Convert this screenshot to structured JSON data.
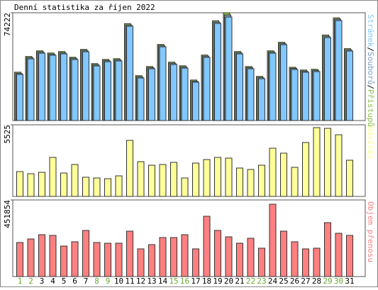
{
  "chart_data": [
    {
      "type": "bar",
      "title": "Denní statistika za říjen 2022",
      "ylim": [
        0,
        74222
      ],
      "yticks": [
        74222
      ],
      "legend_separator": "/",
      "series": [
        {
          "name": "Stránek",
          "color": "#80c8ff",
          "values": [
            31740,
            42480,
            46390,
            44920,
            45900,
            41990,
            47360,
            37600,
            40530,
            41020,
            64940,
            29300,
            35650,
            50780,
            38580,
            36130,
            26370,
            43460,
            66900,
            71290,
            45900,
            35650,
            28810,
            46390,
            52250,
            35160,
            33200,
            33690,
            57130,
            68850,
            47850
          ]
        },
        {
          "name": "Souborů",
          "color": "#7a9cc0",
          "values": [
            32500,
            43300,
            47200,
            45700,
            46700,
            42800,
            48200,
            38400,
            41300,
            41800,
            65800,
            30100,
            36400,
            51600,
            39400,
            36900,
            27100,
            44300,
            67800,
            72700,
            46700,
            36400,
            29600,
            47200,
            53100,
            35900,
            34000,
            34500,
            58000,
            69800,
            48700
          ]
        },
        {
          "name": "Přístupů",
          "color": "#8abf45",
          "values": [
            33300,
            44100,
            48000,
            46500,
            47500,
            43600,
            49000,
            39200,
            42100,
            42600,
            66700,
            30900,
            37200,
            52400,
            40200,
            37700,
            27900,
            45100,
            68700,
            74222,
            47500,
            37200,
            30400,
            48000,
            53900,
            36700,
            34800,
            35300,
            58900,
            70700,
            49500
          ]
        }
      ]
    },
    {
      "type": "bar",
      "ylim": [
        0,
        5525
      ],
      "yticks": [
        5525
      ],
      "series": [
        {
          "name": "Návštěv",
          "color": "#ffff99",
          "values": [
            1915,
            1750,
            1860,
            3009,
            1805,
            2462,
            1477,
            1422,
            1368,
            1586,
            4322,
            2680,
            2407,
            2462,
            2626,
            1422,
            2571,
            2845,
            3009,
            2954,
            2188,
            2079,
            2407,
            3720,
            3337,
            2243,
            4158,
            5306,
            5251,
            4759,
            2790
          ]
        }
      ]
    },
    {
      "type": "bar",
      "ylim": [
        0,
        451854
      ],
      "yticks": [
        451854
      ],
      "categories": [
        "1",
        "2",
        "3",
        "4",
        "5",
        "6",
        "7",
        "8",
        "9",
        "10",
        "11",
        "12",
        "13",
        "14",
        "15",
        "16",
        "17",
        "18",
        "19",
        "20",
        "21",
        "22",
        "23",
        "24",
        "25",
        "26",
        "27",
        "28",
        "29",
        "30",
        "31"
      ],
      "category_colors": [
        "#66aa33",
        "#66aa33",
        "#000000",
        "#000000",
        "#000000",
        "#000000",
        "#000000",
        "#66aa33",
        "#66aa33",
        "#000000",
        "#000000",
        "#000000",
        "#000000",
        "#000000",
        "#66aa33",
        "#66aa33",
        "#000000",
        "#000000",
        "#000000",
        "#000000",
        "#000000",
        "#66aa33",
        "#66aa33",
        "#000000",
        "#000000",
        "#000000",
        "#000000",
        "#000000",
        "#66aa33",
        "#66aa33",
        "#000000"
      ],
      "series": [
        {
          "name": "Objem přenosu",
          "color": "#ff8080",
          "values": [
            200830,
            221750,
            246860,
            242670,
            179910,
            205020,
            271960,
            200830,
            196650,
            196650,
            267780,
            163180,
            188280,
            230120,
            230120,
            246860,
            163180,
            355640,
            271960,
            234300,
            196650,
            225940,
            167360,
            426770,
            267780,
            205020,
            163180,
            167360,
            317980,
            255220,
            242670
          ]
        }
      ]
    }
  ]
}
